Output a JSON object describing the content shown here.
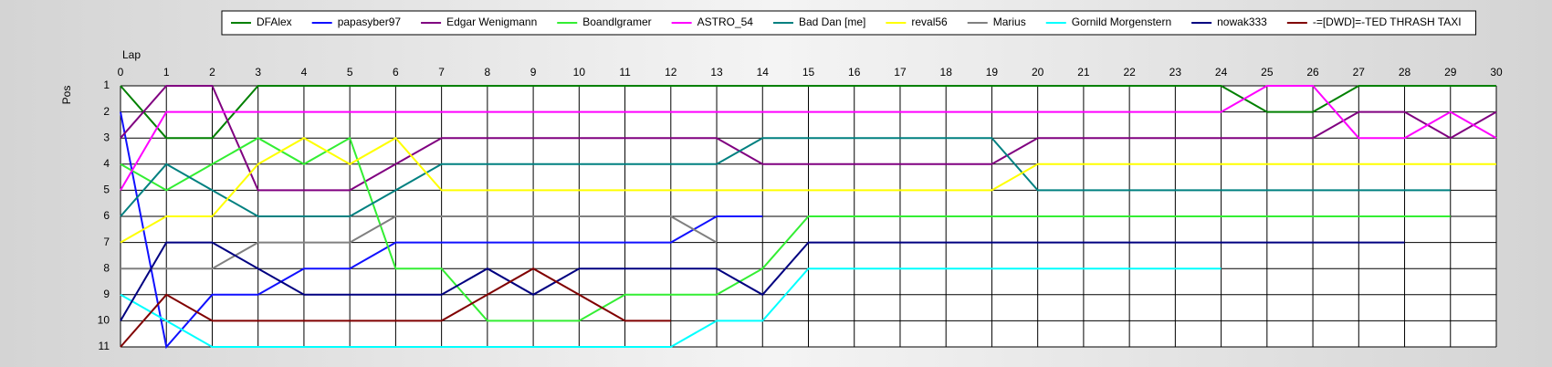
{
  "chart_data": {
    "type": "line",
    "x_label": "Lap",
    "y_label": "Pos",
    "x": [
      0,
      1,
      2,
      3,
      4,
      5,
      6,
      7,
      8,
      9,
      10,
      11,
      12,
      13,
      14,
      15,
      16,
      17,
      18,
      19,
      20,
      21,
      22,
      23,
      24,
      25,
      26,
      27,
      28,
      29,
      30
    ],
    "xlim": [
      0,
      30
    ],
    "xticks": [
      0,
      1,
      2,
      3,
      4,
      5,
      6,
      7,
      8,
      9,
      10,
      11,
      12,
      13,
      14,
      15,
      16,
      17,
      18,
      19,
      20,
      21,
      22,
      23,
      24,
      25,
      26,
      27,
      28,
      29,
      30
    ],
    "ylim": [
      11,
      1
    ],
    "yticks": [
      1,
      2,
      3,
      4,
      5,
      6,
      7,
      8,
      9,
      10,
      11
    ],
    "grid": true,
    "legend": "top",
    "series": [
      {
        "name": "DFAlex",
        "color": "#008000",
        "values": [
          1,
          3,
          3,
          1,
          1,
          1,
          1,
          1,
          1,
          1,
          1,
          1,
          1,
          1,
          1,
          1,
          1,
          1,
          1,
          1,
          1,
          1,
          1,
          1,
          1,
          2,
          2,
          1,
          1,
          1,
          1
        ]
      },
      {
        "name": "papasyber97",
        "color": "#1010ff",
        "values": [
          2,
          11,
          9,
          9,
          8,
          8,
          7,
          7,
          7,
          7,
          7,
          7,
          7,
          6,
          6,
          null,
          null,
          null,
          null,
          null,
          null,
          null,
          null,
          null,
          null,
          null,
          null,
          null,
          null,
          null,
          null
        ]
      },
      {
        "name": "Edgar Wenigmann",
        "color": "#800080",
        "values": [
          3,
          1,
          1,
          5,
          5,
          5,
          4,
          3,
          3,
          3,
          3,
          3,
          3,
          3,
          4,
          4,
          4,
          4,
          4,
          4,
          3,
          3,
          3,
          3,
          3,
          3,
          3,
          2,
          2,
          3,
          2
        ]
      },
      {
        "name": "Boandlgramer",
        "color": "#33ee33",
        "values": [
          4,
          5,
          4,
          3,
          4,
          3,
          8,
          8,
          10,
          10,
          10,
          9,
          9,
          9,
          8,
          6,
          6,
          6,
          6,
          6,
          6,
          6,
          6,
          6,
          6,
          6,
          6,
          6,
          6,
          6,
          null
        ]
      },
      {
        "name": "ASTRO_54",
        "color": "#ff00ff",
        "values": [
          5,
          2,
          2,
          2,
          2,
          2,
          2,
          2,
          2,
          2,
          2,
          2,
          2,
          2,
          2,
          2,
          2,
          2,
          2,
          2,
          2,
          2,
          2,
          2,
          2,
          1,
          1,
          3,
          3,
          2,
          3
        ]
      },
      {
        "name": "Bad Dan [me]",
        "color": "#008080",
        "values": [
          6,
          4,
          5,
          6,
          6,
          6,
          5,
          4,
          4,
          4,
          4,
          4,
          4,
          4,
          3,
          3,
          3,
          3,
          3,
          3,
          5,
          5,
          5,
          5,
          5,
          5,
          5,
          5,
          5,
          5,
          null
        ]
      },
      {
        "name": "reval56",
        "color": "#ffff00",
        "values": [
          7,
          6,
          6,
          4,
          3,
          4,
          3,
          5,
          5,
          5,
          5,
          5,
          5,
          5,
          5,
          5,
          5,
          5,
          5,
          5,
          4,
          4,
          4,
          4,
          4,
          4,
          4,
          4,
          4,
          4,
          4
        ]
      },
      {
        "name": "Marius",
        "color": "#808080",
        "values": [
          8,
          8,
          8,
          7,
          7,
          7,
          6,
          6,
          6,
          6,
          6,
          6,
          6,
          7,
          null,
          null,
          null,
          null,
          null,
          null,
          null,
          null,
          null,
          null,
          null,
          null,
          null,
          null,
          null,
          null,
          null
        ]
      },
      {
        "name": "Gornild Morgenstern",
        "color": "#00ffff",
        "values": [
          9,
          10,
          11,
          11,
          11,
          11,
          11,
          11,
          11,
          11,
          11,
          11,
          11,
          10,
          10,
          8,
          8,
          8,
          8,
          8,
          8,
          8,
          8,
          8,
          8,
          null,
          null,
          null,
          null,
          null,
          null
        ]
      },
      {
        "name": "nowak333",
        "color": "#000080",
        "values": [
          10,
          7,
          7,
          8,
          9,
          9,
          9,
          9,
          8,
          9,
          8,
          8,
          8,
          8,
          9,
          7,
          7,
          7,
          7,
          7,
          7,
          7,
          7,
          7,
          7,
          7,
          7,
          7,
          7,
          null,
          null
        ]
      },
      {
        "name": "-=[DWD]=-TED THRASH TAXI",
        "color": "#800000",
        "values": [
          11,
          9,
          10,
          10,
          10,
          10,
          10,
          10,
          9,
          8,
          9,
          10,
          10,
          null,
          null,
          null,
          null,
          null,
          null,
          null,
          null,
          null,
          null,
          null,
          null,
          null,
          null,
          null,
          null,
          null,
          null
        ]
      }
    ]
  }
}
